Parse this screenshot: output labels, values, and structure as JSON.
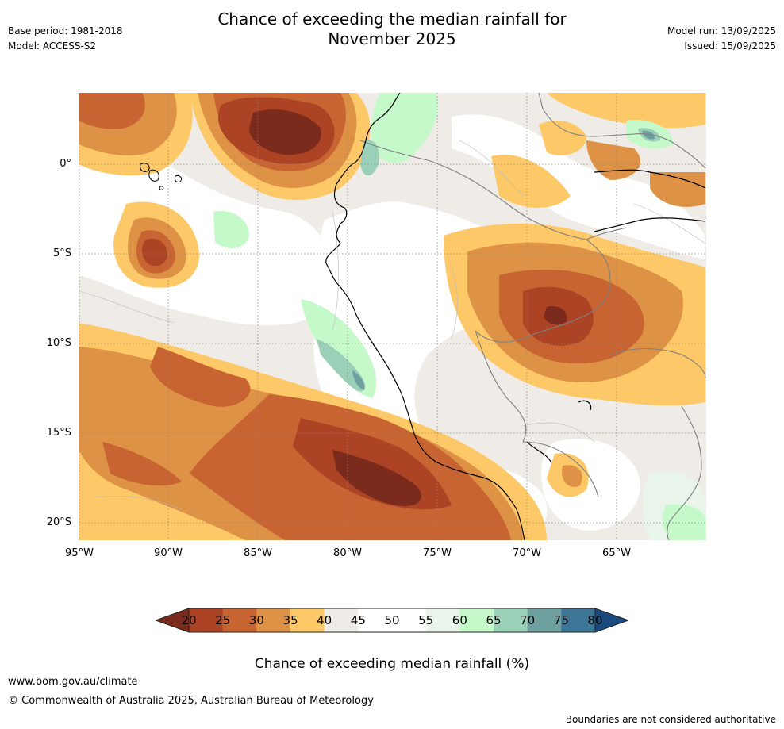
{
  "title_line1": "Chance of exceeding the median rainfall for",
  "title_line2": "November 2025",
  "base_period": "Base period: 1981-2018",
  "model": "Model: ACCESS-S2",
  "model_run": "Model run: 13/09/2025",
  "issued": "Issued: 15/09/2025",
  "map": {
    "lat_labels": [
      "0°",
      "5°S",
      "10°S",
      "15°S",
      "20°S"
    ],
    "lon_labels": [
      "95°W",
      "90°W",
      "85°W",
      "80°W",
      "75°W",
      "70°W",
      "65°W"
    ],
    "lat_values": [
      0,
      -5,
      -10,
      -15,
      -20
    ],
    "lon_values": [
      -95,
      -90,
      -85,
      -80,
      -75,
      -70,
      -65
    ]
  },
  "colorbar": {
    "ticks": [
      "20",
      "25",
      "30",
      "35",
      "40",
      "45",
      "50",
      "55",
      "60",
      "65",
      "70",
      "75",
      "80"
    ],
    "label": "Chance of exceeding median rainfall (%)",
    "colors": [
      "#7a2b1c",
      "#ab4324",
      "#c76432",
      "#de9245",
      "#fdc867",
      "#efebe6",
      "#ffffff",
      "#ffffff",
      "#e9f5ea",
      "#c6f9ca",
      "#9ad0b8",
      "#6ea09f",
      "#3c7595",
      "#1a4a7e"
    ]
  },
  "footer": {
    "url": "www.bom.gov.au/climate",
    "copyright": "© Commonwealth of Australia 2025, Australian Bureau of Meteorology",
    "disclaimer": "Boundaries are not considered authoritative"
  }
}
